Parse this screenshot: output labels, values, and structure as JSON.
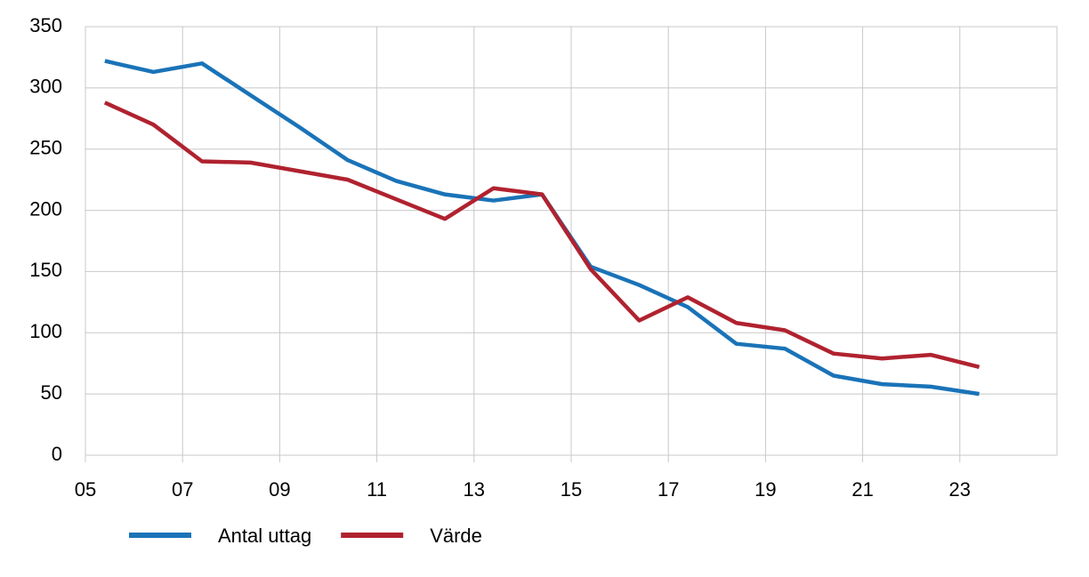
{
  "chart_data": {
    "type": "line",
    "x": [
      2005.4,
      2006.4,
      2007.4,
      2008.4,
      2009.4,
      2010.4,
      2011.4,
      2012.4,
      2013.4,
      2014.4,
      2015.4,
      2016.4,
      2017.4,
      2018.4,
      2019.4,
      2020.4,
      2021.4,
      2022.4,
      2023.4
    ],
    "series": [
      {
        "name": "Antal uttag",
        "color": "#1a73b8",
        "values": [
          322,
          313,
          320,
          294,
          268,
          241,
          224,
          213,
          208,
          213,
          154,
          139,
          121,
          91,
          87,
          65,
          58,
          56,
          50
        ]
      },
      {
        "name": "Värde",
        "color": "#b0222f",
        "values": [
          288,
          270,
          240,
          239,
          232,
          225,
          209,
          193,
          218,
          213,
          152,
          110,
          129,
          108,
          102,
          83,
          79,
          82,
          72
        ]
      }
    ],
    "xlim": [
      2005,
      2025
    ],
    "xticks": [
      {
        "value": 2005,
        "label": "05"
      },
      {
        "value": 2007,
        "label": "07"
      },
      {
        "value": 2009,
        "label": "09"
      },
      {
        "value": 2011,
        "label": "11"
      },
      {
        "value": 2013,
        "label": "13"
      },
      {
        "value": 2015,
        "label": "15"
      },
      {
        "value": 2017,
        "label": "17"
      },
      {
        "value": 2019,
        "label": "19"
      },
      {
        "value": 2021,
        "label": "21"
      },
      {
        "value": 2023,
        "label": "23"
      }
    ],
    "ylim": [
      0,
      350
    ],
    "yticks": [
      0,
      50,
      100,
      150,
      200,
      250,
      300,
      350
    ],
    "grid": true,
    "legend": "bottom"
  }
}
